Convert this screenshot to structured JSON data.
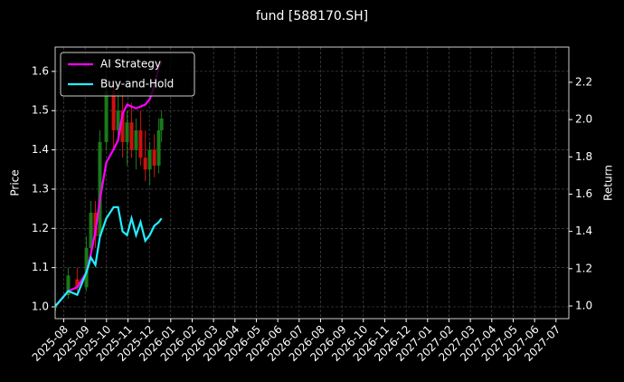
{
  "chart_data": {
    "type": "candlestick",
    "title": "fund [588170.SH]",
    "y_label": "Price",
    "y2_label": "Return",
    "x": [
      -0.38,
      0.21,
      0.63,
      1.06,
      1.27,
      1.48,
      1.69,
      1.99,
      2.33,
      2.54,
      2.75,
      2.96,
      3.17,
      3.38,
      3.59,
      3.81,
      4.02,
      4.23,
      4.44,
      4.57
    ],
    "candles": {
      "open": [
        1.0,
        1.03,
        1.07,
        1.05,
        1.15,
        1.24,
        1.18,
        1.42,
        1.55,
        1.45,
        1.5,
        1.42,
        1.47,
        1.4,
        1.45,
        1.38,
        1.35,
        1.4,
        1.36,
        1.45
      ],
      "high": [
        1.01,
        1.1,
        1.1,
        1.18,
        1.27,
        1.27,
        1.45,
        1.6,
        1.58,
        1.55,
        1.55,
        1.5,
        1.52,
        1.48,
        1.5,
        1.45,
        1.42,
        1.44,
        1.48,
        1.5
      ],
      "low": [
        0.99,
        1.02,
        1.04,
        1.04,
        1.13,
        1.15,
        1.17,
        1.4,
        1.4,
        1.42,
        1.38,
        1.36,
        1.38,
        1.35,
        1.36,
        1.32,
        1.31,
        1.33,
        1.34,
        1.42
      ],
      "close": [
        1.0,
        1.08,
        1.05,
        1.15,
        1.24,
        1.18,
        1.42,
        1.55,
        1.45,
        1.5,
        1.42,
        1.47,
        1.4,
        1.45,
        1.38,
        1.35,
        1.4,
        1.36,
        1.45,
        1.48
      ],
      "up_color": "#1a7a1a",
      "down_color": "#d01010"
    },
    "series": [
      {
        "name": "AI Strategy",
        "color": "#ff00ff",
        "axis": "y2",
        "values": [
          1.0,
          1.08,
          1.1,
          1.18,
          1.28,
          1.4,
          1.57,
          1.77,
          1.84,
          1.89,
          2.03,
          2.08,
          2.07,
          2.06,
          2.07,
          2.08,
          2.11,
          2.18,
          2.28,
          2.31
        ]
      },
      {
        "name": "Buy-and-Hold",
        "color": "#22eeff",
        "axis": "y2",
        "values": [
          1.0,
          1.08,
          1.06,
          1.18,
          1.26,
          1.22,
          1.37,
          1.47,
          1.53,
          1.53,
          1.4,
          1.38,
          1.47,
          1.38,
          1.45,
          1.35,
          1.38,
          1.43,
          1.45,
          1.47
        ]
      }
    ],
    "xlim": [
      -0.4,
      23.6
    ],
    "xticks": [
      {
        "value": 0,
        "label": "2025-08"
      },
      {
        "value": 1,
        "label": "2025-09"
      },
      {
        "value": 2,
        "label": "2025-10"
      },
      {
        "value": 3,
        "label": "2025-11"
      },
      {
        "value": 4,
        "label": "2025-12"
      },
      {
        "value": 5,
        "label": "2026-01"
      },
      {
        "value": 6,
        "label": "2026-02"
      },
      {
        "value": 7,
        "label": "2026-03"
      },
      {
        "value": 8,
        "label": "2026-04"
      },
      {
        "value": 9,
        "label": "2026-05"
      },
      {
        "value": 10,
        "label": "2026-06"
      },
      {
        "value": 11,
        "label": "2026-07"
      },
      {
        "value": 12,
        "label": "2026-08"
      },
      {
        "value": 13,
        "label": "2026-09"
      },
      {
        "value": 14,
        "label": "2026-10"
      },
      {
        "value": 15,
        "label": "2026-11"
      },
      {
        "value": 16,
        "label": "2026-12"
      },
      {
        "value": 17,
        "label": "2027-01"
      },
      {
        "value": 18,
        "label": "2027-02"
      },
      {
        "value": 19,
        "label": "2027-03"
      },
      {
        "value": 20,
        "label": "2027-04"
      },
      {
        "value": 21,
        "label": "2027-05"
      },
      {
        "value": 22,
        "label": "2027-06"
      },
      {
        "value": 23,
        "label": "2027-07"
      }
    ],
    "ylim": [
      0.97,
      1.662
    ],
    "yticks": [
      {
        "value": 1,
        "label": "1.0"
      },
      1.1,
      1.2,
      1.3,
      1.4,
      1.5,
      1.6
    ],
    "y2lim": [
      0.932,
      2.389
    ],
    "y2ticks": [
      {
        "value": 1,
        "label": "1.0"
      },
      1.2,
      1.4,
      1.6,
      1.8,
      {
        "value": 2,
        "label": "2.0"
      },
      2.2
    ],
    "grid": true,
    "legend": "upper left"
  }
}
